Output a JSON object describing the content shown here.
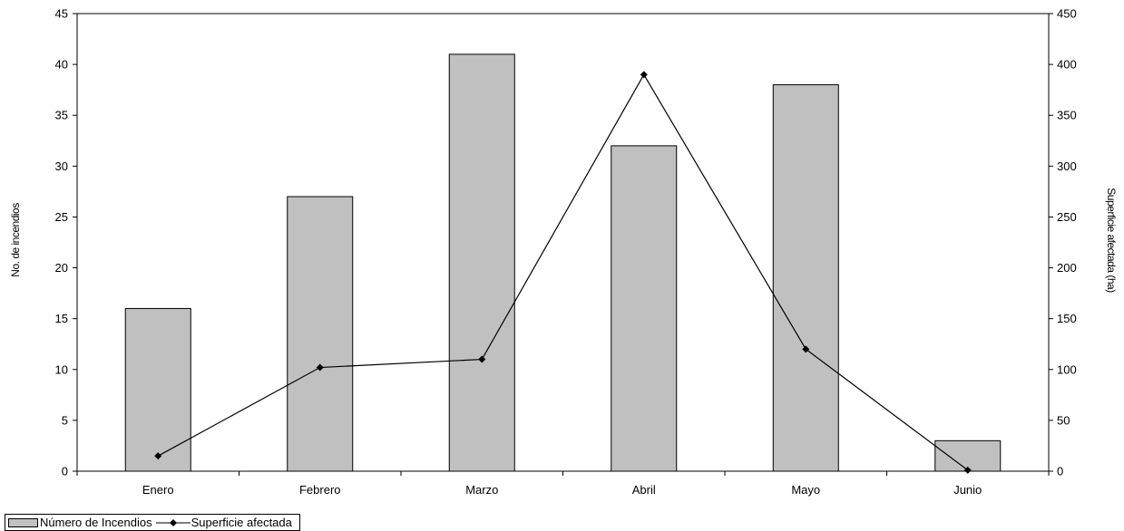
{
  "chart_data": {
    "type": "bar",
    "categories": [
      "Enero",
      "Febrero",
      "Marzo",
      "Abril",
      "Mayo",
      "Junio"
    ],
    "series": [
      {
        "name": "Número de Incendios",
        "type": "bar",
        "axis": "left",
        "values": [
          16,
          27,
          41,
          32,
          38,
          3
        ]
      },
      {
        "name": "Superficie afectada",
        "type": "line",
        "axis": "right",
        "values": [
          15,
          102,
          110,
          390,
          120,
          1
        ]
      }
    ],
    "title": "",
    "xlabel": "",
    "ylabel": "No. de incendios",
    "ylabel_right": "Superficie afectada (ha)",
    "ylim": [
      0,
      45
    ],
    "ylim_right": [
      0,
      450
    ],
    "yticks": [
      "0",
      "5",
      "10",
      "15",
      "20",
      "25",
      "30",
      "35",
      "40",
      "45"
    ],
    "yticks_right": [
      "0",
      "50",
      "100",
      "150",
      "200",
      "250",
      "300",
      "350",
      "400",
      "450"
    ],
    "grid": false,
    "legend_position": "bottom-left",
    "colors": {
      "bar": "#c0c0c0",
      "line": "#000000"
    }
  }
}
